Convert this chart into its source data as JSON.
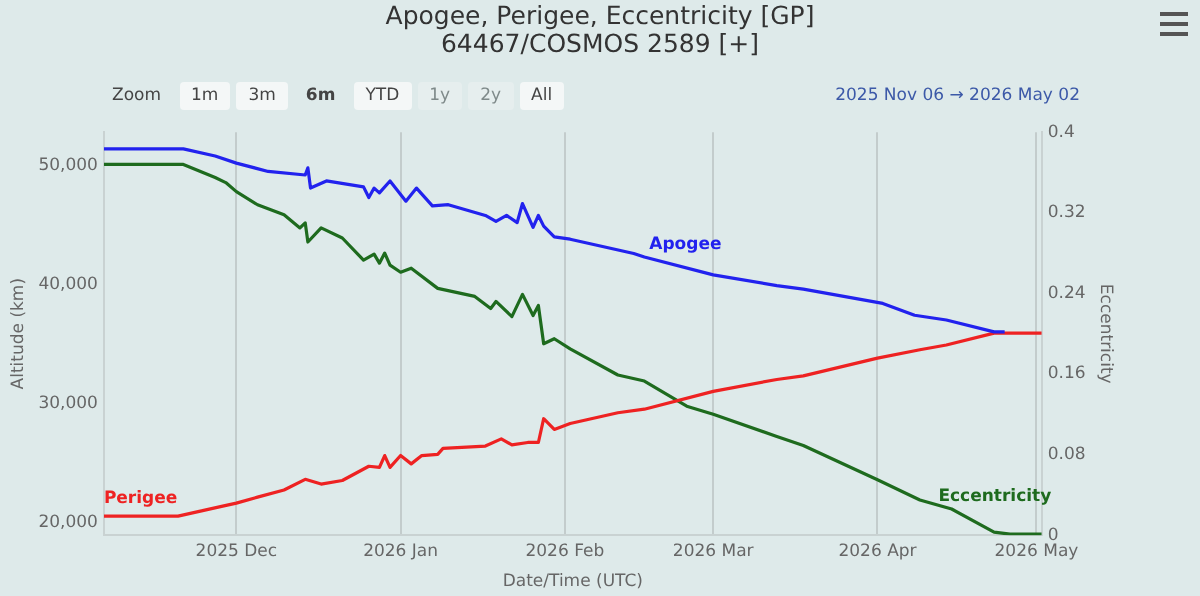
{
  "chart_data": {
    "type": "line",
    "title": "Apogee, Perigee, Eccentricity [GP]",
    "subtitle": "64467/COSMOS 2589 [+]",
    "xlabel": "Date/Time (UTC)",
    "ylabel": "Altitude (km)",
    "y2label": "Eccentricity",
    "annotations": [
      "Zoom",
      "1m",
      "3m",
      "6m",
      "YTD",
      "1y",
      "2y",
      "All",
      "2025 Nov 06 → 2026 May 02"
    ],
    "xlim": [
      "2025-11-06",
      "2026-05-02"
    ],
    "xticks": [
      {
        "value": "2025-12-01",
        "label": "2025 Dec"
      },
      {
        "value": "2026-01-01",
        "label": "2026 Jan"
      },
      {
        "value": "2026-02-01",
        "label": "2026 Feb"
      },
      {
        "value": "2026-03-01",
        "label": "2026 Mar"
      },
      {
        "value": "2026-04-01",
        "label": "2026 Apr"
      },
      {
        "value": "2026-05-01",
        "label": "2026 May"
      }
    ],
    "ylim": [
      18900,
      52800
    ],
    "yticks": [
      {
        "value": 20000,
        "label": "20,000"
      },
      {
        "value": 30000,
        "label": "30,000"
      },
      {
        "value": 40000,
        "label": "40,000"
      },
      {
        "value": 50000,
        "label": "50,000"
      }
    ],
    "y2lim": [
      0,
      0.4
    ],
    "y2ticks": [
      0,
      0.08,
      0.16,
      0.24,
      0.32,
      0.4
    ],
    "grid": "x",
    "legend": false,
    "marker": "none",
    "line_style": "solid",
    "series": [
      {
        "name": "Apogee",
        "color": "#2222ee",
        "x": [
          "2025-11-06",
          "2025-11-21",
          "2025-11-27",
          "2025-12-01",
          "2025-12-07",
          "2025-12-14",
          "2025-12-14T12:00",
          "2025-12-15",
          "2025-12-18",
          "2025-12-25",
          "2025-12-26",
          "2025-12-27",
          "2025-12-28",
          "2025-12-30",
          "2026-01-02",
          "2026-01-04",
          "2026-01-07",
          "2026-01-10",
          "2026-01-17",
          "2026-01-19",
          "2026-01-21",
          "2026-01-23",
          "2026-01-24",
          "2026-01-26",
          "2026-01-27",
          "2026-01-28",
          "2026-01-30",
          "2026-02-02",
          "2026-02-14",
          "2026-02-16",
          "2026-03-01",
          "2026-03-13",
          "2026-03-18",
          "2026-04-02",
          "2026-04-08",
          "2026-04-14",
          "2026-04-23",
          "2026-04-25"
        ],
        "values": [
          51400,
          51400,
          50800,
          50200,
          49500,
          49200,
          49800,
          48100,
          48700,
          48200,
          47300,
          48100,
          47700,
          48700,
          47000,
          48100,
          46600,
          46700,
          45800,
          45300,
          45800,
          45200,
          46800,
          44800,
          45800,
          44900,
          44000,
          43800,
          42600,
          42300,
          40800,
          39900,
          39600,
          38400,
          37400,
          37000,
          36000,
          36000
        ]
      },
      {
        "name": "Perigee",
        "color": "#ee2222",
        "x": [
          "2025-11-06",
          "2025-11-20",
          "2025-11-24",
          "2025-11-28",
          "2025-12-01",
          "2025-12-05",
          "2025-12-10",
          "2025-12-14",
          "2025-12-17",
          "2025-12-21",
          "2025-12-26",
          "2025-12-28",
          "2025-12-29",
          "2025-12-30",
          "2026-01-01",
          "2026-01-03",
          "2026-01-05",
          "2026-01-08",
          "2026-01-09",
          "2026-01-17",
          "2026-01-20",
          "2026-01-22",
          "2026-01-25",
          "2026-01-27",
          "2026-01-28",
          "2026-01-30",
          "2026-02-02",
          "2026-02-11",
          "2026-02-16",
          "2026-03-01",
          "2026-03-13",
          "2026-03-18",
          "2026-04-01",
          "2026-04-09",
          "2026-04-14",
          "2026-04-23",
          "2026-05-02"
        ],
        "values": [
          20500,
          20500,
          20900,
          21300,
          21600,
          22100,
          22700,
          23600,
          23200,
          23500,
          24700,
          24600,
          25600,
          24600,
          25600,
          24900,
          25600,
          25700,
          26200,
          26400,
          27000,
          26500,
          26700,
          26700,
          28700,
          27800,
          28300,
          29200,
          29500,
          31000,
          32000,
          32300,
          33800,
          34500,
          34900,
          35900,
          35900
        ]
      },
      {
        "name": "Eccentricity",
        "color": "#1e6b1e",
        "axis": "y2",
        "x": [
          "2025-11-06",
          "2025-11-21",
          "2025-11-27",
          "2025-11-29",
          "2025-12-01",
          "2025-12-05",
          "2025-12-10",
          "2025-12-13",
          "2025-12-14",
          "2025-12-14T12:00",
          "2025-12-17",
          "2025-12-21",
          "2025-12-25",
          "2025-12-27",
          "2025-12-28",
          "2025-12-29",
          "2025-12-30",
          "2026-01-01",
          "2026-01-03",
          "2026-01-08",
          "2026-01-15",
          "2026-01-18",
          "2026-01-19",
          "2026-01-22",
          "2026-01-24",
          "2026-01-26",
          "2026-01-27",
          "2026-01-28",
          "2026-01-30",
          "2026-02-02",
          "2026-02-11",
          "2026-02-16",
          "2026-02-24",
          "2026-03-01",
          "2026-03-13",
          "2026-03-18",
          "2026-04-01",
          "2026-04-09",
          "2026-04-15",
          "2026-04-23",
          "2026-04-26",
          "2026-05-02"
        ],
        "values": [
          0.368,
          0.368,
          0.355,
          0.35,
          0.341,
          0.328,
          0.318,
          0.305,
          0.31,
          0.291,
          0.305,
          0.295,
          0.273,
          0.279,
          0.27,
          0.28,
          0.268,
          0.261,
          0.265,
          0.245,
          0.237,
          0.225,
          0.232,
          0.217,
          0.239,
          0.218,
          0.228,
          0.19,
          0.195,
          0.185,
          0.159,
          0.153,
          0.128,
          0.12,
          0.098,
          0.089,
          0.055,
          0.035,
          0.026,
          0.003,
          0.001,
          0.001
        ]
      }
    ]
  }
}
